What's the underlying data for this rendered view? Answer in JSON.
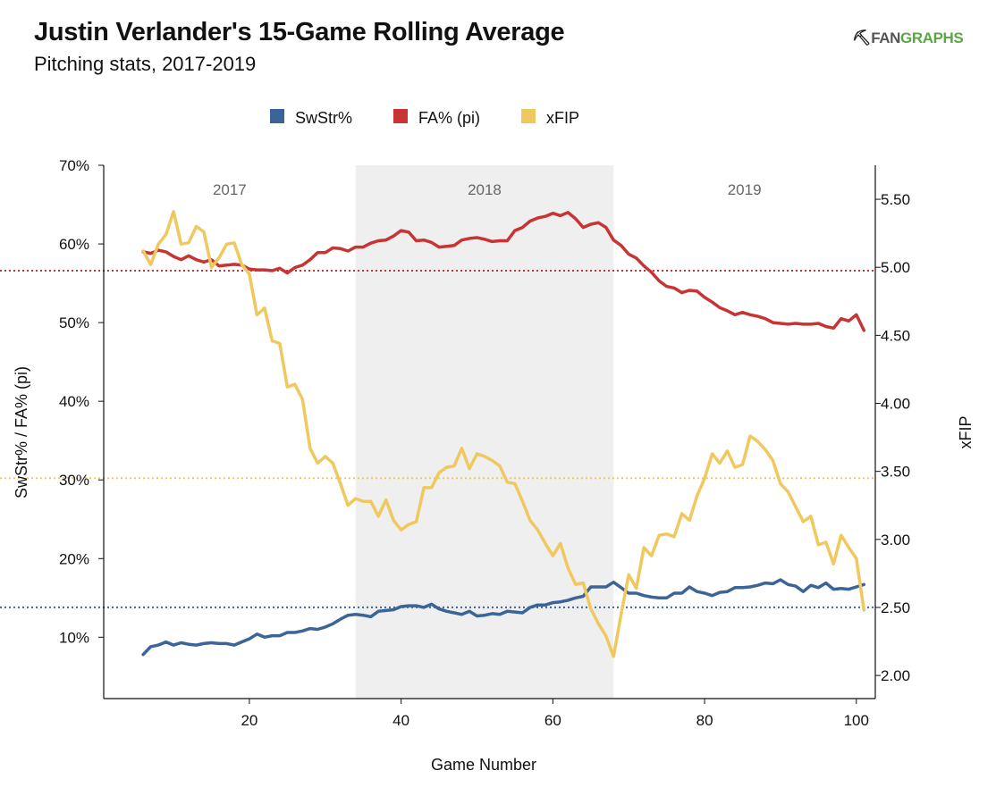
{
  "header": {
    "title": "Justin Verlander's 15-Game Rolling Average",
    "subtitle": "Pitching stats, 2017-2019",
    "brand_mark": "⛏",
    "brand_part1": "FAN",
    "brand_part2": "GRAPHS"
  },
  "colors": {
    "swstr": "#3b6499",
    "fa": "#c83334",
    "xfip": "#f0c85e",
    "shade": "#efefef"
  },
  "chart_data": {
    "type": "line",
    "xlabel": "Game Number",
    "ylabel_left": "SwStr% / FA% (pi)",
    "ylabel_right": "xFIP",
    "x_ticks": [
      20,
      40,
      60,
      80,
      100
    ],
    "y_left_ticks": [
      "10%",
      "20%",
      "30%",
      "40%",
      "50%",
      "60%",
      "70%"
    ],
    "y_right_ticks": [
      "2.00",
      "2.50",
      "3.00",
      "3.50",
      "4.00",
      "4.50",
      "5.00",
      "5.50"
    ],
    "xlim": [
      0.8,
      102.5
    ],
    "ylim_left": [
      2.2,
      70
    ],
    "ylim_right": [
      1.83,
      5.75
    ],
    "legend_placement": "top-center",
    "legend": [
      "SwStr%",
      "FA% (pi)",
      "xFIP"
    ],
    "eras": [
      {
        "label": "2017",
        "start": 0.8,
        "end": 34,
        "shaded": false
      },
      {
        "label": "2018",
        "start": 34,
        "end": 68,
        "shaded": true
      },
      {
        "label": "2019",
        "start": 68,
        "end": 102.5,
        "shaded": false
      }
    ],
    "reference_lines": [
      {
        "series": "FA% (pi)",
        "axis": "left",
        "value": 56.6
      },
      {
        "series": "xFIP",
        "axis": "right",
        "value": 3.45
      },
      {
        "series": "SwStr%",
        "axis": "left",
        "value": 13.8
      }
    ],
    "x": [
      6,
      7,
      8,
      9,
      10,
      11,
      12,
      13,
      14,
      15,
      16,
      17,
      18,
      19,
      20,
      21,
      22,
      23,
      24,
      25,
      26,
      27,
      28,
      29,
      30,
      31,
      32,
      33,
      34,
      35,
      36,
      37,
      38,
      39,
      40,
      41,
      42,
      43,
      44,
      45,
      46,
      47,
      48,
      49,
      50,
      51,
      52,
      53,
      54,
      55,
      56,
      57,
      58,
      59,
      60,
      61,
      62,
      63,
      64,
      65,
      66,
      67,
      68,
      69,
      70,
      71,
      72,
      73,
      74,
      75,
      76,
      77,
      78,
      79,
      80,
      81,
      82,
      83,
      84,
      85,
      86,
      87,
      88,
      89,
      90,
      91,
      92,
      93,
      94,
      95,
      96,
      97,
      98,
      99,
      100,
      101
    ],
    "series": [
      {
        "name": "SwStr%",
        "axis": "left",
        "values": [
          7.8,
          8.8,
          9.0,
          9.4,
          9.0,
          9.3,
          9.1,
          9.0,
          9.2,
          9.3,
          9.2,
          9.2,
          9.0,
          9.4,
          9.8,
          10.4,
          10.0,
          10.2,
          10.2,
          10.6,
          10.6,
          10.8,
          11.1,
          11.0,
          11.3,
          11.7,
          12.3,
          12.8,
          12.9,
          12.8,
          12.6,
          13.3,
          13.4,
          13.5,
          13.9,
          14.0,
          14.0,
          13.8,
          14.2,
          13.6,
          13.3,
          13.1,
          12.9,
          13.3,
          12.7,
          12.8,
          13.0,
          12.9,
          13.3,
          13.2,
          13.1,
          13.8,
          14.1,
          14.1,
          14.4,
          14.5,
          14.7,
          15.0,
          15.2,
          16.4,
          16.4,
          16.4,
          17.0,
          16.3,
          15.6,
          15.6,
          15.3,
          15.1,
          15.0,
          15.0,
          15.6,
          15.6,
          16.4,
          15.8,
          15.6,
          15.3,
          15.7,
          15.8,
          16.3,
          16.3,
          16.4,
          16.6,
          16.9,
          16.8,
          17.3,
          16.7,
          16.5,
          15.8,
          16.6,
          16.3,
          16.9,
          16.1,
          16.2,
          16.1,
          16.4,
          16.7
        ]
      },
      {
        "name": "FA% (pi)",
        "axis": "left",
        "values": [
          59.0,
          58.8,
          59.2,
          59.0,
          58.4,
          58.0,
          58.5,
          58.0,
          57.7,
          58.0,
          57.2,
          57.3,
          57.4,
          57.3,
          56.8,
          56.7,
          56.7,
          56.6,
          56.9,
          56.3,
          57.0,
          57.3,
          58.0,
          58.9,
          58.9,
          59.5,
          59.4,
          59.1,
          59.6,
          59.6,
          60.1,
          60.4,
          60.5,
          61.0,
          61.7,
          61.5,
          60.4,
          60.5,
          60.2,
          59.6,
          59.7,
          59.8,
          60.5,
          60.7,
          60.8,
          60.6,
          60.3,
          60.4,
          60.4,
          61.7,
          62.1,
          62.9,
          63.3,
          63.5,
          63.9,
          63.6,
          64.0,
          63.2,
          62.1,
          62.5,
          62.7,
          62.1,
          60.5,
          59.8,
          58.7,
          58.2,
          57.2,
          56.4,
          55.3,
          54.6,
          54.4,
          53.8,
          54.1,
          54.0,
          53.2,
          52.6,
          51.9,
          51.5,
          51.0,
          51.3,
          51.0,
          50.8,
          50.5,
          50.0,
          49.9,
          49.8,
          49.9,
          49.8,
          49.8,
          49.9,
          49.5,
          49.3,
          50.5,
          50.2,
          51.0,
          49.0
        ]
      },
      {
        "name": "xFIP",
        "axis": "right",
        "values": [
          5.12,
          5.02,
          5.17,
          5.24,
          5.41,
          5.17,
          5.18,
          5.3,
          5.26,
          5.0,
          5.07,
          5.17,
          5.18,
          5.02,
          4.95,
          4.65,
          4.7,
          4.46,
          4.44,
          4.12,
          4.14,
          4.03,
          3.67,
          3.56,
          3.61,
          3.56,
          3.41,
          3.25,
          3.3,
          3.28,
          3.28,
          3.17,
          3.29,
          3.14,
          3.07,
          3.11,
          3.13,
          3.38,
          3.38,
          3.49,
          3.53,
          3.54,
          3.67,
          3.52,
          3.63,
          3.61,
          3.58,
          3.54,
          3.42,
          3.41,
          3.28,
          3.14,
          3.07,
          2.97,
          2.88,
          2.97,
          2.79,
          2.67,
          2.68,
          2.49,
          2.38,
          2.29,
          2.14,
          2.45,
          2.74,
          2.64,
          2.94,
          2.88,
          3.03,
          3.04,
          3.02,
          3.19,
          3.14,
          3.32,
          3.45,
          3.63,
          3.56,
          3.65,
          3.53,
          3.55,
          3.76,
          3.72,
          3.66,
          3.58,
          3.41,
          3.35,
          3.24,
          3.13,
          3.17,
          2.96,
          2.98,
          2.82,
          3.03,
          2.94,
          2.86,
          2.48
        ]
      }
    ]
  }
}
